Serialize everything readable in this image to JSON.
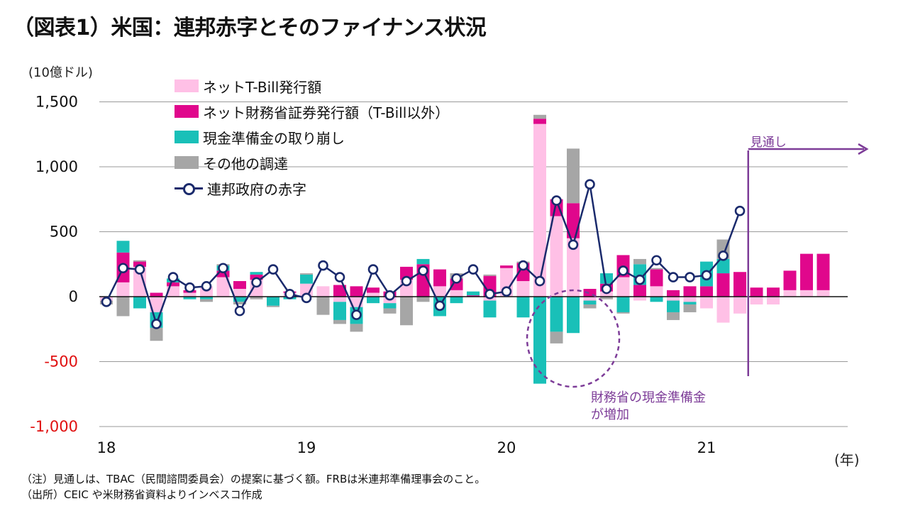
{
  "title": "（図表1）米国：連邦赤字とそのファイナンス状況",
  "notes": {
    "note": "（注）見通しは、TBAC（民間諮問委員会）の提案に基づく額。FRBは米連邦準備理事会のこと。",
    "source": "（出所）CEIC や米財務省資料よりインベスコ作成"
  },
  "annotations": {
    "forecast": "見通し",
    "cash_increase": "財務省の現金準備金\nが増加"
  },
  "colors": {
    "tbill": "#ffc0e6",
    "coupon": "#e0078c",
    "cash": "#19c0b8",
    "other": "#a6a6a6",
    "deficit": "#1a2a6c",
    "accent": "#7d3c98",
    "negative_tick": "#e01010"
  },
  "chart_data": {
    "type": "bar",
    "stacked": true,
    "ylabel": "(10億ドル)",
    "xlabel": "(年)",
    "ylim": [
      -1000,
      1500
    ],
    "yticks": [
      -1000,
      -500,
      0,
      500,
      1000,
      1500
    ],
    "ytick_labels": [
      "-1,000",
      "-500",
      "0",
      "500",
      "1,000",
      "1,500"
    ],
    "grid": true,
    "legend_position": "top-left",
    "x_start": "2018-01",
    "frequency": "monthly",
    "year_labels": [
      {
        "label": "18",
        "index": 0
      },
      {
        "label": "19",
        "index": 12
      },
      {
        "label": "20",
        "index": 24
      },
      {
        "label": "21",
        "index": 36
      }
    ],
    "forecast_from_index": 39,
    "series": [
      {
        "name": "ネットT-Bill発行額",
        "key": "tbill",
        "type": "bar",
        "values": [
          -30,
          110,
          230,
          -120,
          80,
          30,
          80,
          150,
          60,
          130,
          0,
          30,
          100,
          80,
          -40,
          -80,
          30,
          -50,
          130,
          0,
          80,
          50,
          0,
          -30,
          220,
          120,
          1330,
          620,
          450,
          -30,
          40,
          150,
          -30,
          80,
          -30,
          -40,
          -90,
          -200,
          -130,
          -60,
          -60,
          50,
          50,
          50
        ]
      },
      {
        "name": "ネット財務省証券発行額（T-Bill以外）",
        "key": "coupon",
        "type": "bar",
        "values": [
          0,
          230,
          40,
          30,
          30,
          20,
          0,
          50,
          60,
          40,
          0,
          10,
          0,
          0,
          90,
          80,
          40,
          40,
          100,
          250,
          130,
          90,
          10,
          160,
          20,
          140,
          40,
          130,
          270,
          60,
          60,
          170,
          90,
          130,
          50,
          80,
          80,
          180,
          190,
          70,
          70,
          150,
          280,
          280
        ]
      },
      {
        "name": "現金準備金の取り崩し",
        "key": "cash",
        "type": "bar",
        "values": [
          0,
          90,
          -90,
          -120,
          30,
          -20,
          -20,
          40,
          -40,
          20,
          -70,
          -20,
          70,
          0,
          -140,
          -130,
          -50,
          -40,
          0,
          40,
          -150,
          -50,
          30,
          -130,
          0,
          -160,
          -670,
          -270,
          -280,
          -30,
          80,
          -120,
          160,
          -40,
          -90,
          -20,
          190,
          110,
          0,
          0,
          0,
          0,
          0,
          0
        ]
      },
      {
        "name": "その他の調達",
        "key": "other",
        "type": "bar",
        "values": [
          -30,
          -150,
          10,
          -100,
          0,
          0,
          -20,
          10,
          -20,
          -20,
          -10,
          0,
          10,
          -140,
          -30,
          -60,
          0,
          -40,
          -220,
          -40,
          0,
          40,
          0,
          10,
          0,
          10,
          30,
          -90,
          420,
          -30,
          -20,
          -10,
          40,
          10,
          -60,
          -60,
          0,
          150,
          0,
          0,
          0,
          0,
          0,
          0
        ]
      },
      {
        "name": "連邦政府の赤字",
        "key": "deficit",
        "type": "line",
        "values": [
          -40,
          220,
          210,
          -210,
          150,
          70,
          80,
          220,
          -110,
          110,
          210,
          20,
          -10,
          240,
          150,
          -140,
          210,
          10,
          120,
          200,
          -70,
          140,
          210,
          20,
          40,
          240,
          120,
          740,
          400,
          865,
          60,
          200,
          130,
          280,
          150,
          150,
          165,
          315,
          660
        ]
      }
    ]
  }
}
